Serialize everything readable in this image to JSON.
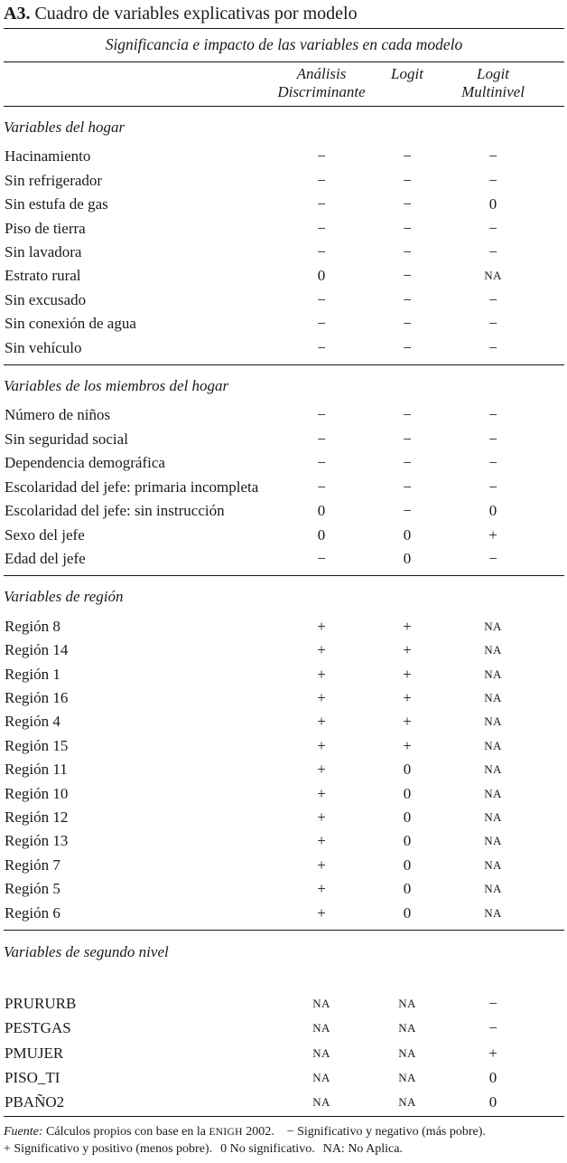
{
  "page": {
    "title_label": "A3.",
    "title_text": " Cuadro de variables explicativas por modelo",
    "subtitle": "Significancia e impacto de las variables en cada modelo"
  },
  "table": {
    "columns": [
      {
        "name": "analisis-discriminante",
        "lines": [
          "Análisis",
          "Discriminante"
        ]
      },
      {
        "name": "logit",
        "lines": [
          "Logit"
        ]
      },
      {
        "name": "logit-multinivel",
        "lines": [
          "Logit",
          "Multinivel"
        ]
      }
    ],
    "sections": [
      {
        "heading": "Variables del hogar",
        "rows": [
          {
            "label": "Hacinamiento",
            "values": [
              "−",
              "−",
              "−"
            ]
          },
          {
            "label": "Sin refrigerador",
            "values": [
              "−",
              "−",
              "−"
            ]
          },
          {
            "label": "Sin estufa de gas",
            "values": [
              "−",
              "−",
              "0"
            ]
          },
          {
            "label": "Piso de tierra",
            "values": [
              "−",
              "−",
              "−"
            ]
          },
          {
            "label": "Sin lavadora",
            "values": [
              "−",
              "−",
              "−"
            ]
          },
          {
            "label": "Estrato rural",
            "values": [
              "0",
              "−",
              "NA"
            ]
          },
          {
            "label": "Sin excusado",
            "values": [
              "−",
              "−",
              "−"
            ]
          },
          {
            "label": "Sin conexión de agua",
            "values": [
              "−",
              "−",
              "−"
            ]
          },
          {
            "label": "Sin vehículo",
            "values": [
              "−",
              "−",
              "−"
            ]
          }
        ]
      },
      {
        "heading": "Variables de los miembros del hogar",
        "rows": [
          {
            "label": "Número de niños",
            "values": [
              "−",
              "−",
              "−"
            ]
          },
          {
            "label": "Sin seguridad social",
            "values": [
              "−",
              "−",
              "−"
            ]
          },
          {
            "label": "Dependencia demográfica",
            "values": [
              "−",
              "−",
              "−"
            ]
          },
          {
            "label": "Escolaridad del jefe: primaria incompleta",
            "values": [
              "−",
              "−",
              "−"
            ]
          },
          {
            "label": "Escolaridad del jefe: sin instrucción",
            "values": [
              "0",
              "−",
              "0"
            ]
          },
          {
            "label": "Sexo del jefe",
            "values": [
              "0",
              "0",
              "+"
            ]
          },
          {
            "label": "Edad del jefe",
            "values": [
              "−",
              "0",
              "−"
            ]
          }
        ]
      },
      {
        "heading": "Variables de región",
        "rows": [
          {
            "label": "Región 8",
            "values": [
              "+",
              "+",
              "NA"
            ]
          },
          {
            "label": "Región 14",
            "values": [
              "+",
              "+",
              "NA"
            ]
          },
          {
            "label": "Región 1",
            "values": [
              "+",
              "+",
              "NA"
            ]
          },
          {
            "label": "Región 16",
            "values": [
              "+",
              "+",
              "NA"
            ]
          },
          {
            "label": "Región 4",
            "values": [
              "+",
              "+",
              "NA"
            ]
          },
          {
            "label": "Región 15",
            "values": [
              "+",
              "+",
              "NA"
            ]
          },
          {
            "label": "Región 11",
            "values": [
              "+",
              "0",
              "NA"
            ]
          },
          {
            "label": "Región 10",
            "values": [
              "+",
              "0",
              "NA"
            ]
          },
          {
            "label": "Región 12",
            "values": [
              "+",
              "0",
              "NA"
            ]
          },
          {
            "label": "Región 13",
            "values": [
              "+",
              "0",
              "NA"
            ]
          },
          {
            "label": "Región 7",
            "values": [
              "+",
              "0",
              "NA"
            ]
          },
          {
            "label": "Región 5",
            "values": [
              "+",
              "0",
              "NA"
            ]
          },
          {
            "label": "Región 6",
            "values": [
              "+",
              "0",
              "NA"
            ]
          }
        ]
      },
      {
        "heading": "Variables de segundo nivel",
        "gap_after_heading": true,
        "rows": [
          {
            "label": "PRURURB",
            "values": [
              "NA",
              "NA",
              "−"
            ]
          },
          {
            "label": "PESTGAS",
            "values": [
              "NA",
              "NA",
              "−"
            ]
          },
          {
            "label": "PMUJER",
            "values": [
              "NA",
              "NA",
              "+"
            ]
          },
          {
            "label": "PISO_TI",
            "values": [
              "NA",
              "NA",
              "0"
            ]
          },
          {
            "label": "PBAÑO2",
            "values": [
              "NA",
              "NA",
              "0"
            ]
          }
        ]
      }
    ]
  },
  "footnote": {
    "source_label": "Fuente:",
    "source_text": " Cálculos propios con base en la ",
    "source_acronym": "ENIGH",
    "source_year": " 2002.",
    "legend_minus": "− Significativo y negativo (más pobre).",
    "legend_plus": "+ Significativo y positivo (menos pobre).",
    "legend_zero": "0 No significativo.",
    "legend_na": "NA: No Aplica."
  }
}
